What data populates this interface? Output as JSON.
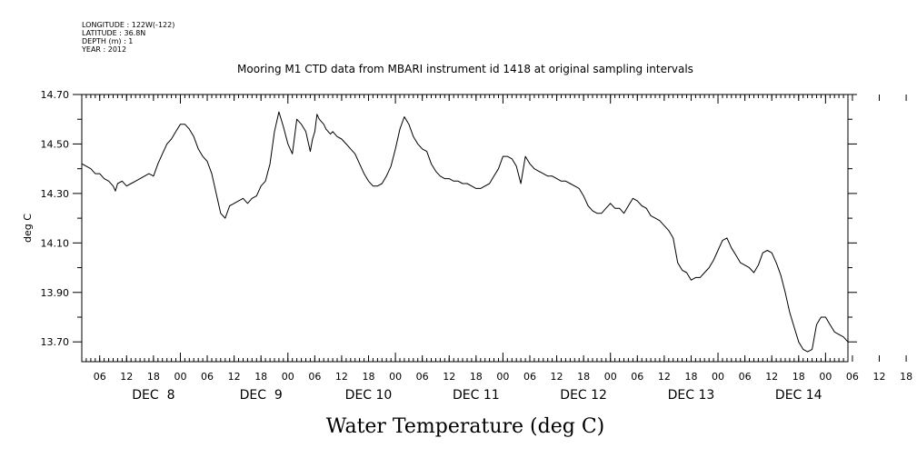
{
  "header": {
    "lines": [
      "LONGITUDE : 122W(-122)",
      "LATITUDE : 36.8N",
      "DEPTH (m) : 1",
      "YEAR : 2012"
    ]
  },
  "chart_data": {
    "type": "line",
    "title": "Mooring M1 CTD data from MBARI instrument id 1418 at original sampling intervals",
    "xlabel": "Water Temperature (deg C)",
    "ylabel": "deg C",
    "ylim": [
      13.62,
      14.7
    ],
    "yticks": [
      "13.70",
      "13.90",
      "14.10",
      "14.30",
      "14.50",
      "14.70"
    ],
    "xlim_hours": [
      0,
      171
    ],
    "hour_tick_labels": [
      "06",
      "12",
      "18",
      "00",
      "06",
      "12",
      "18",
      "00",
      "06",
      "12",
      "18",
      "00",
      "06",
      "12",
      "18",
      "00",
      "06",
      "12",
      "18",
      "00",
      "06",
      "12",
      "18",
      "00",
      "06",
      "12",
      "18",
      "00",
      "06",
      "12",
      "18",
      "00"
    ],
    "day_labels": [
      "DEC  8",
      "DEC  9",
      "DEC 10",
      "DEC 11",
      "DEC 12",
      "DEC 13",
      "DEC 14"
    ],
    "series": [
      {
        "x": [
          0,
          2,
          3,
          4,
          5,
          6,
          7,
          7.5,
          8,
          9,
          10,
          11,
          12,
          13,
          14,
          15,
          16,
          17,
          18,
          19,
          20,
          21,
          22,
          23,
          24,
          25,
          26,
          27,
          28,
          29,
          30,
          31,
          32,
          33,
          34,
          35,
          36,
          37,
          38,
          39,
          40,
          41,
          42,
          43,
          44,
          45,
          46,
          47,
          48,
          49,
          50,
          51,
          51.5,
          52,
          52.5,
          53,
          54,
          54.5,
          55,
          55.5,
          56,
          57,
          58,
          59,
          60,
          61,
          62,
          63,
          64,
          65,
          66,
          67,
          68,
          69,
          70,
          71,
          72,
          73,
          74,
          75,
          76,
          77,
          78,
          79,
          80,
          81,
          82,
          83,
          84,
          85,
          86,
          87,
          88,
          89,
          90,
          91,
          92,
          93,
          94,
          95,
          96,
          97,
          98,
          99,
          100,
          101,
          102,
          103,
          104,
          105,
          106,
          107,
          108,
          109,
          110,
          111,
          112,
          113,
          114,
          115,
          116,
          117,
          118,
          119,
          120,
          121,
          122,
          123,
          124,
          125,
          126,
          127,
          128,
          129,
          130,
          131,
          132,
          133,
          134,
          135,
          136,
          137,
          138,
          139,
          140,
          141,
          142,
          143,
          144,
          145,
          146,
          147,
          148,
          149,
          150,
          151,
          152,
          153,
          154,
          155,
          156,
          157,
          158,
          159,
          160,
          161,
          162,
          163,
          164,
          165,
          166,
          167,
          168,
          169,
          170,
          171
        ],
        "y": [
          14.42,
          14.4,
          14.38,
          14.38,
          14.36,
          14.35,
          14.33,
          14.31,
          14.34,
          14.35,
          14.33,
          14.34,
          14.35,
          14.36,
          14.37,
          14.38,
          14.37,
          14.42,
          14.46,
          14.5,
          14.52,
          14.55,
          14.58,
          14.58,
          14.56,
          14.53,
          14.48,
          14.45,
          14.43,
          14.38,
          14.3,
          14.22,
          14.2,
          14.25,
          14.26,
          14.27,
          14.28,
          14.26,
          14.28,
          14.29,
          14.33,
          14.35,
          14.42,
          14.55,
          14.63,
          14.57,
          14.5,
          14.46,
          14.6,
          14.58,
          14.55,
          14.47,
          14.52,
          14.55,
          14.62,
          14.6,
          14.58,
          14.56,
          14.55,
          14.54,
          14.55,
          14.53,
          14.52,
          14.5,
          14.48,
          14.46,
          14.42,
          14.38,
          14.35,
          14.33,
          14.33,
          14.34,
          14.37,
          14.41,
          14.48,
          14.56,
          14.61,
          14.58,
          14.53,
          14.5,
          14.48,
          14.47,
          14.42,
          14.39,
          14.37,
          14.36,
          14.36,
          14.35,
          14.35,
          14.34,
          14.34,
          14.33,
          14.32,
          14.32,
          14.33,
          14.34,
          14.37,
          14.4,
          14.45,
          14.45,
          14.44,
          14.41,
          14.34,
          14.45,
          14.42,
          14.4,
          14.39,
          14.38,
          14.37,
          14.37,
          14.36,
          14.35,
          14.35,
          14.34,
          14.33,
          14.32,
          14.29,
          14.25,
          14.23,
          14.22,
          14.22,
          14.24,
          14.26,
          14.24,
          14.24,
          14.22,
          14.25,
          14.28,
          14.27,
          14.25,
          14.24,
          14.21,
          14.2,
          14.19,
          14.17,
          14.15,
          14.12,
          14.02,
          13.99,
          13.98,
          13.95,
          13.96,
          13.96,
          13.98,
          14.0,
          14.03,
          14.07,
          14.11,
          14.12,
          14.08,
          14.05,
          14.02,
          14.01,
          14.0,
          13.98,
          14.01,
          14.06,
          14.07,
          14.06,
          14.02,
          13.97,
          13.9,
          13.82,
          13.76,
          13.7,
          13.67,
          13.66,
          13.67,
          13.77,
          13.8,
          13.8,
          13.77,
          13.74,
          13.73,
          13.72,
          13.7
        ]
      }
    ]
  }
}
